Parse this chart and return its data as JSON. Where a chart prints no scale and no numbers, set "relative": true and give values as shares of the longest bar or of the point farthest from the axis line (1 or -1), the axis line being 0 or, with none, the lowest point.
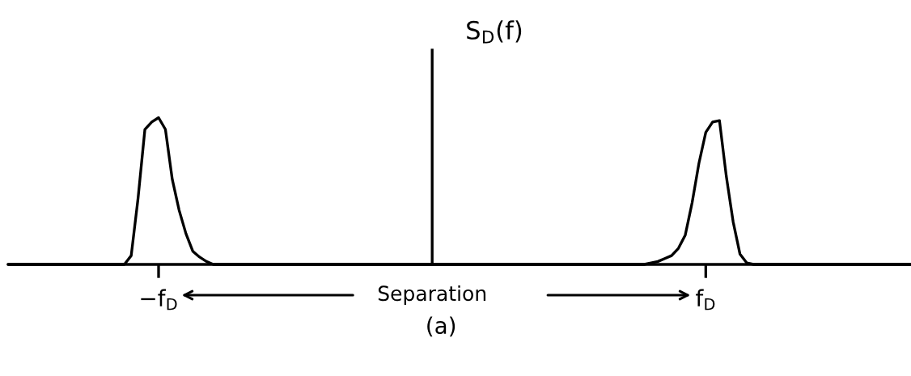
{
  "chart_data": {
    "type": "line",
    "relative": true,
    "ylabel": "S$_{D}$(f)",
    "categories": [
      null,
      null,
      null,
      null,
      null,
      null,
      null,
      null,
      null,
      null,
      null,
      null,
      null,
      null,
      null,
      null,
      null,
      null,
      null,
      null,
      null,
      null,
      "−f$_{D}$",
      null,
      null,
      null,
      null,
      null,
      null,
      null,
      null,
      null,
      null,
      null,
      null,
      null,
      null,
      null,
      null,
      null,
      null,
      null,
      null,
      null,
      null,
      null,
      null,
      null,
      null,
      null,
      null,
      null,
      null,
      null,
      null,
      null,
      null,
      null,
      null,
      null,
      null,
      null,
      null,
      null,
      null,
      null,
      null,
      null,
      null,
      null,
      null,
      null,
      null,
      null,
      null,
      null,
      null,
      null,
      null,
      null,
      null,
      null,
      null,
      null,
      null,
      null,
      null,
      null,
      null,
      null,
      null,
      null,
      null,
      null,
      null,
      null,
      null,
      null,
      null,
      null,
      null,
      null,
      "f$_{D}$",
      null,
      null,
      null,
      null,
      null,
      null,
      null,
      null,
      null,
      null,
      null,
      null,
      null,
      null,
      null,
      null,
      null,
      null,
      null,
      null,
      null,
      null,
      null,
      null,
      null,
      null,
      null,
      null,
      null,
      null
    ],
    "series": [
      {
        "color": "#000000",
        "values": [
          0,
          0,
          0,
          0,
          0,
          0,
          0,
          0,
          0,
          0,
          0,
          0,
          0,
          0,
          0,
          0,
          0,
          0,
          0.06,
          0.45,
          0.92,
          0.97,
          1,
          0.92,
          0.58,
          0.37,
          0.21,
          0.09,
          0.05,
          0.02,
          0,
          0,
          0,
          0,
          0,
          0,
          0,
          0,
          0,
          0,
          0,
          0,
          0,
          0,
          0,
          0,
          0,
          0,
          0,
          0,
          0,
          0,
          0,
          0,
          0,
          0,
          0,
          0,
          0,
          0,
          0,
          0,
          0,
          0,
          0,
          0,
          0,
          0,
          0,
          0,
          0,
          0,
          0,
          0,
          0,
          0,
          0,
          0,
          0,
          0,
          0,
          0,
          0,
          0,
          0,
          0,
          0,
          0,
          0,
          0,
          0,
          0,
          0,
          0,
          0.01,
          0.02,
          0.04,
          0.06,
          0.11,
          0.2,
          0.42,
          0.69,
          0.9,
          0.97,
          0.98,
          0.6,
          0.29,
          0.07,
          0.01,
          0,
          0,
          0,
          0,
          0,
          0,
          0,
          0,
          0,
          0,
          0,
          0,
          0,
          0,
          0,
          0,
          0,
          0,
          0,
          0,
          0,
          0,
          0,
          0
        ]
      }
    ],
    "tick_labels": "x",
    "annotations": [
      "Separation",
      "(a)"
    ]
  }
}
